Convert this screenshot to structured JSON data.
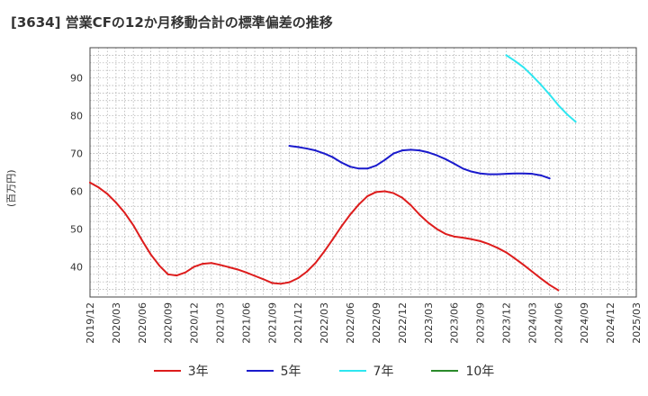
{
  "title": "[3634]  営業CFの12か月移動合計の標準偏差の推移",
  "ylabel": "(百万円)",
  "chart_data": {
    "type": "line",
    "title": "[3634]  営業CFの12か月移動合計の標準偏差の推移",
    "xlabel": "",
    "ylabel": "(百万円)",
    "xlim": [
      "2019/12",
      "2025/03"
    ],
    "ylim": [
      32,
      98
    ],
    "yticks": [
      40,
      50,
      60,
      70,
      80,
      90
    ],
    "xticks": [
      "2019/12",
      "2020/03",
      "2020/06",
      "2020/09",
      "2020/12",
      "2021/03",
      "2021/06",
      "2021/09",
      "2021/12",
      "2022/03",
      "2022/06",
      "2022/09",
      "2022/12",
      "2023/03",
      "2023/06",
      "2023/09",
      "2023/12",
      "2024/03",
      "2024/06",
      "2024/09",
      "2024/12",
      "2025/03"
    ],
    "grid": true,
    "legend_position": "bottom",
    "series": [
      {
        "name": "3年",
        "color": "#dd1c1c",
        "points": [
          [
            "2019/12",
            62.3
          ],
          [
            "2020/01",
            61.0
          ],
          [
            "2020/02",
            59.3
          ],
          [
            "2020/03",
            57.0
          ],
          [
            "2020/04",
            54.3
          ],
          [
            "2020/05",
            51.0
          ],
          [
            "2020/06",
            47.0
          ],
          [
            "2020/07",
            43.3
          ],
          [
            "2020/08",
            40.3
          ],
          [
            "2020/09",
            38.0
          ],
          [
            "2020/10",
            37.7
          ],
          [
            "2020/11",
            38.5
          ],
          [
            "2020/12",
            40.0
          ],
          [
            "2021/01",
            40.8
          ],
          [
            "2021/02",
            41.0
          ],
          [
            "2021/03",
            40.5
          ],
          [
            "2021/04",
            39.9
          ],
          [
            "2021/05",
            39.3
          ],
          [
            "2021/06",
            38.5
          ],
          [
            "2021/07",
            37.6
          ],
          [
            "2021/08",
            36.7
          ],
          [
            "2021/09",
            35.7
          ],
          [
            "2021/10",
            35.5
          ],
          [
            "2021/11",
            35.9
          ],
          [
            "2021/12",
            37.0
          ],
          [
            "2022/01",
            38.7
          ],
          [
            "2022/02",
            41.0
          ],
          [
            "2022/03",
            44.0
          ],
          [
            "2022/04",
            47.3
          ],
          [
            "2022/05",
            50.7
          ],
          [
            "2022/06",
            53.8
          ],
          [
            "2022/07",
            56.5
          ],
          [
            "2022/08",
            58.7
          ],
          [
            "2022/09",
            59.8
          ],
          [
            "2022/10",
            60.0
          ],
          [
            "2022/11",
            59.5
          ],
          [
            "2022/12",
            58.3
          ],
          [
            "2023/01",
            56.3
          ],
          [
            "2023/02",
            53.8
          ],
          [
            "2023/03",
            51.7
          ],
          [
            "2023/04",
            50.0
          ],
          [
            "2023/05",
            48.7
          ],
          [
            "2023/06",
            48.0
          ],
          [
            "2023/07",
            47.7
          ],
          [
            "2023/08",
            47.3
          ],
          [
            "2023/09",
            46.8
          ],
          [
            "2023/10",
            46.0
          ],
          [
            "2023/11",
            45.0
          ],
          [
            "2023/12",
            43.8
          ],
          [
            "2024/01",
            42.2
          ],
          [
            "2024/02",
            40.5
          ],
          [
            "2024/03",
            38.7
          ],
          [
            "2024/04",
            36.9
          ],
          [
            "2024/05",
            35.2
          ],
          [
            "2024/06",
            33.8
          ]
        ]
      },
      {
        "name": "5年",
        "color": "#1a1acc",
        "points": [
          [
            "2021/11",
            72.0
          ],
          [
            "2021/12",
            71.7
          ],
          [
            "2022/01",
            71.3
          ],
          [
            "2022/02",
            70.8
          ],
          [
            "2022/03",
            70.0
          ],
          [
            "2022/04",
            69.0
          ],
          [
            "2022/05",
            67.6
          ],
          [
            "2022/06",
            66.5
          ],
          [
            "2022/07",
            66.0
          ],
          [
            "2022/08",
            66.0
          ],
          [
            "2022/09",
            66.8
          ],
          [
            "2022/10",
            68.3
          ],
          [
            "2022/11",
            70.0
          ],
          [
            "2022/12",
            70.8
          ],
          [
            "2023/01",
            71.0
          ],
          [
            "2023/02",
            70.8
          ],
          [
            "2023/03",
            70.3
          ],
          [
            "2023/04",
            69.5
          ],
          [
            "2023/05",
            68.5
          ],
          [
            "2023/06",
            67.3
          ],
          [
            "2023/07",
            66.0
          ],
          [
            "2023/08",
            65.2
          ],
          [
            "2023/09",
            64.7
          ],
          [
            "2023/10",
            64.5
          ],
          [
            "2023/11",
            64.5
          ],
          [
            "2023/12",
            64.6
          ],
          [
            "2024/01",
            64.7
          ],
          [
            "2024/02",
            64.7
          ],
          [
            "2024/03",
            64.6
          ],
          [
            "2024/04",
            64.2
          ],
          [
            "2024/05",
            63.4
          ]
        ]
      },
      {
        "name": "7年",
        "color": "#2ee6f0",
        "points": [
          [
            "2023/12",
            96.0
          ],
          [
            "2024/01",
            94.5
          ],
          [
            "2024/02",
            92.8
          ],
          [
            "2024/03",
            90.6
          ],
          [
            "2024/04",
            88.2
          ],
          [
            "2024/05",
            85.6
          ],
          [
            "2024/06",
            82.8
          ],
          [
            "2024/07",
            80.4
          ],
          [
            "2024/08",
            78.4
          ]
        ]
      },
      {
        "name": "10年",
        "color": "#2a8a2a",
        "points": []
      }
    ]
  }
}
